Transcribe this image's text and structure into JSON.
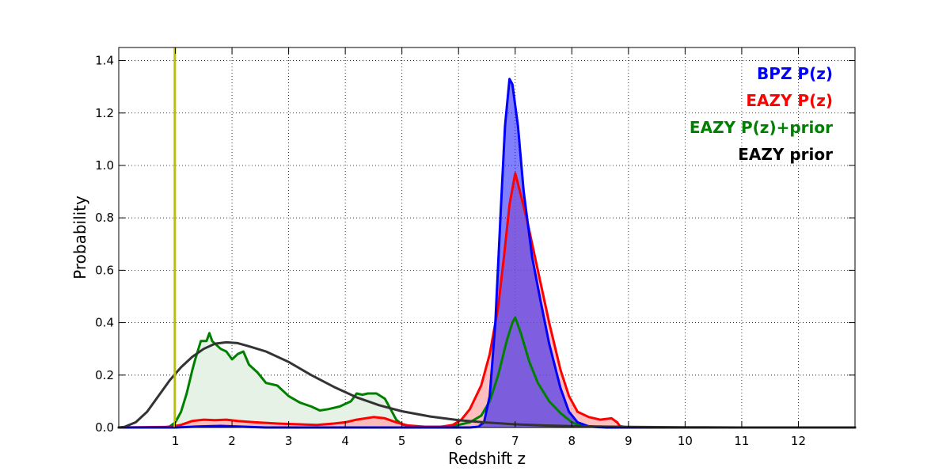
{
  "chart_data": {
    "type": "area",
    "title": "",
    "xlabel": "Redshift z",
    "ylabel": "Probability",
    "xlim": [
      0,
      13
    ],
    "ylim": [
      0,
      1.45
    ],
    "grid": true,
    "legend_position": "top-right",
    "x_ticks": [
      1,
      2,
      3,
      4,
      5,
      6,
      7,
      8,
      9,
      10,
      11,
      12
    ],
    "y_ticks": [
      0.0,
      0.2,
      0.4,
      0.6,
      0.8,
      1.0,
      1.2,
      1.4
    ],
    "x_tick_labels": [
      "1",
      "2",
      "3",
      "4",
      "5",
      "6",
      "7",
      "8",
      "9",
      "10",
      "11",
      "12"
    ],
    "y_tick_labels": [
      "0.0",
      "0.2",
      "0.4",
      "0.6",
      "0.8",
      "1.0",
      "1.2",
      "1.4"
    ],
    "marker_line": {
      "x": 0.99,
      "color": "#bfbf00"
    },
    "series": [
      {
        "name": "EAZY P(z)+prior",
        "color": "#008000",
        "fill": "#e6f2e6",
        "fill_opacity": 1.0,
        "points": [
          [
            0.0,
            0.0
          ],
          [
            0.8,
            0.0
          ],
          [
            0.9,
            0.004
          ],
          [
            1.0,
            0.02
          ],
          [
            1.1,
            0.06
          ],
          [
            1.2,
            0.13
          ],
          [
            1.3,
            0.22
          ],
          [
            1.35,
            0.26
          ],
          [
            1.45,
            0.33
          ],
          [
            1.55,
            0.33
          ],
          [
            1.6,
            0.36
          ],
          [
            1.65,
            0.33
          ],
          [
            1.8,
            0.3
          ],
          [
            1.9,
            0.29
          ],
          [
            2.0,
            0.26
          ],
          [
            2.1,
            0.28
          ],
          [
            2.2,
            0.29
          ],
          [
            2.3,
            0.24
          ],
          [
            2.45,
            0.21
          ],
          [
            2.6,
            0.17
          ],
          [
            2.8,
            0.16
          ],
          [
            3.0,
            0.12
          ],
          [
            3.2,
            0.095
          ],
          [
            3.4,
            0.08
          ],
          [
            3.55,
            0.065
          ],
          [
            3.7,
            0.07
          ],
          [
            3.9,
            0.08
          ],
          [
            4.1,
            0.1
          ],
          [
            4.2,
            0.13
          ],
          [
            4.3,
            0.125
          ],
          [
            4.4,
            0.13
          ],
          [
            4.55,
            0.13
          ],
          [
            4.7,
            0.11
          ],
          [
            4.8,
            0.07
          ],
          [
            4.9,
            0.03
          ],
          [
            5.0,
            0.012
          ],
          [
            5.2,
            0.004
          ],
          [
            5.5,
            0.002
          ],
          [
            5.8,
            0.004
          ],
          [
            6.0,
            0.01
          ],
          [
            6.2,
            0.02
          ],
          [
            6.4,
            0.045
          ],
          [
            6.55,
            0.1
          ],
          [
            6.7,
            0.2
          ],
          [
            6.85,
            0.33
          ],
          [
            6.95,
            0.4
          ],
          [
            7.0,
            0.42
          ],
          [
            7.1,
            0.36
          ],
          [
            7.25,
            0.25
          ],
          [
            7.4,
            0.17
          ],
          [
            7.6,
            0.1
          ],
          [
            7.8,
            0.055
          ],
          [
            8.0,
            0.02
          ],
          [
            8.15,
            0.008
          ],
          [
            8.4,
            0.003
          ],
          [
            9.0,
            0.0
          ],
          [
            13.0,
            0.0
          ]
        ]
      },
      {
        "name": "EAZY P(z)",
        "color": "#ff0000",
        "fill": "#ffaaaa",
        "fill_opacity": 0.75,
        "points": [
          [
            0.0,
            0.0
          ],
          [
            0.9,
            0.002
          ],
          [
            1.1,
            0.01
          ],
          [
            1.3,
            0.025
          ],
          [
            1.5,
            0.03
          ],
          [
            1.7,
            0.028
          ],
          [
            1.9,
            0.03
          ],
          [
            2.1,
            0.025
          ],
          [
            2.4,
            0.02
          ],
          [
            2.8,
            0.015
          ],
          [
            3.2,
            0.012
          ],
          [
            3.5,
            0.01
          ],
          [
            3.8,
            0.015
          ],
          [
            4.0,
            0.02
          ],
          [
            4.2,
            0.03
          ],
          [
            4.5,
            0.04
          ],
          [
            4.7,
            0.035
          ],
          [
            4.9,
            0.02
          ],
          [
            5.1,
            0.008
          ],
          [
            5.4,
            0.003
          ],
          [
            5.7,
            0.003
          ],
          [
            5.9,
            0.01
          ],
          [
            6.05,
            0.03
          ],
          [
            6.2,
            0.07
          ],
          [
            6.4,
            0.16
          ],
          [
            6.55,
            0.28
          ],
          [
            6.7,
            0.46
          ],
          [
            6.8,
            0.65
          ],
          [
            6.9,
            0.85
          ],
          [
            7.0,
            0.97
          ],
          [
            7.05,
            0.93
          ],
          [
            7.2,
            0.8
          ],
          [
            7.4,
            0.6
          ],
          [
            7.6,
            0.4
          ],
          [
            7.8,
            0.22
          ],
          [
            7.95,
            0.12
          ],
          [
            8.1,
            0.06
          ],
          [
            8.3,
            0.04
          ],
          [
            8.5,
            0.03
          ],
          [
            8.7,
            0.035
          ],
          [
            8.8,
            0.02
          ],
          [
            8.85,
            0.005
          ],
          [
            9.0,
            0.0
          ],
          [
            13.0,
            0.0
          ]
        ]
      },
      {
        "name": "BPZ P(z)",
        "color": "#0000ff",
        "fill": "#0000ff",
        "fill_opacity": 0.5,
        "points": [
          [
            0.0,
            0.0
          ],
          [
            1.0,
            0.0
          ],
          [
            1.4,
            0.004
          ],
          [
            1.8,
            0.006
          ],
          [
            2.2,
            0.003
          ],
          [
            2.6,
            0.0
          ],
          [
            6.2,
            0.0
          ],
          [
            6.35,
            0.003
          ],
          [
            6.45,
            0.02
          ],
          [
            6.55,
            0.12
          ],
          [
            6.65,
            0.4
          ],
          [
            6.75,
            0.85
          ],
          [
            6.82,
            1.15
          ],
          [
            6.9,
            1.33
          ],
          [
            6.95,
            1.31
          ],
          [
            7.05,
            1.15
          ],
          [
            7.15,
            0.9
          ],
          [
            7.3,
            0.65
          ],
          [
            7.45,
            0.48
          ],
          [
            7.6,
            0.32
          ],
          [
            7.8,
            0.15
          ],
          [
            7.95,
            0.06
          ],
          [
            8.1,
            0.02
          ],
          [
            8.3,
            0.004
          ],
          [
            8.6,
            0.0
          ],
          [
            13.0,
            0.0
          ]
        ]
      },
      {
        "name": "EAZY prior",
        "color": "#333333",
        "fill": "none",
        "fill_opacity": 0.0,
        "points": [
          [
            0.0,
            0.0
          ],
          [
            0.1,
            0.002
          ],
          [
            0.3,
            0.02
          ],
          [
            0.5,
            0.06
          ],
          [
            0.7,
            0.12
          ],
          [
            0.9,
            0.18
          ],
          [
            1.1,
            0.23
          ],
          [
            1.3,
            0.27
          ],
          [
            1.5,
            0.3
          ],
          [
            1.7,
            0.32
          ],
          [
            1.9,
            0.325
          ],
          [
            2.1,
            0.322
          ],
          [
            2.3,
            0.31
          ],
          [
            2.6,
            0.29
          ],
          [
            3.0,
            0.25
          ],
          [
            3.4,
            0.2
          ],
          [
            3.8,
            0.155
          ],
          [
            4.2,
            0.115
          ],
          [
            4.6,
            0.085
          ],
          [
            5.0,
            0.062
          ],
          [
            5.5,
            0.042
          ],
          [
            6.0,
            0.028
          ],
          [
            6.5,
            0.019
          ],
          [
            7.0,
            0.012
          ],
          [
            7.5,
            0.008
          ],
          [
            8.0,
            0.005
          ],
          [
            9.0,
            0.002
          ],
          [
            10.0,
            0.001
          ],
          [
            11.0,
            0.0
          ],
          [
            13.0,
            0.0
          ]
        ]
      }
    ],
    "legend": [
      {
        "label": "BPZ P(z)",
        "color": "#0000ff"
      },
      {
        "label": "EAZY P(z)",
        "color": "#ff0000"
      },
      {
        "label": "EAZY P(z)+prior",
        "color": "#008000"
      },
      {
        "label": "EAZY prior",
        "color": "#000000"
      }
    ]
  }
}
